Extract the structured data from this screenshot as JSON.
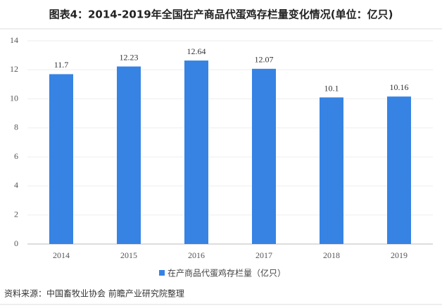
{
  "chart_data": {
    "type": "bar",
    "title": "图表4：2014-2019年全国在产商品代蛋鸡存栏量变化情况(单位：亿只)",
    "categories": [
      "2014",
      "2015",
      "2016",
      "2017",
      "2018",
      "2019"
    ],
    "series": [
      {
        "name": "在产商品代蛋鸡存栏量（亿只）",
        "color": "#3683e3",
        "values": [
          11.7,
          12.23,
          12.64,
          12.07,
          10.1,
          10.16
        ]
      }
    ],
    "ylim": [
      0,
      14
    ],
    "yticks": [
      0,
      2,
      4,
      6,
      8,
      10,
      12,
      14
    ],
    "grid": true,
    "source": "资料来源：中国畜牧业协会 前瞻产业研究院整理"
  }
}
